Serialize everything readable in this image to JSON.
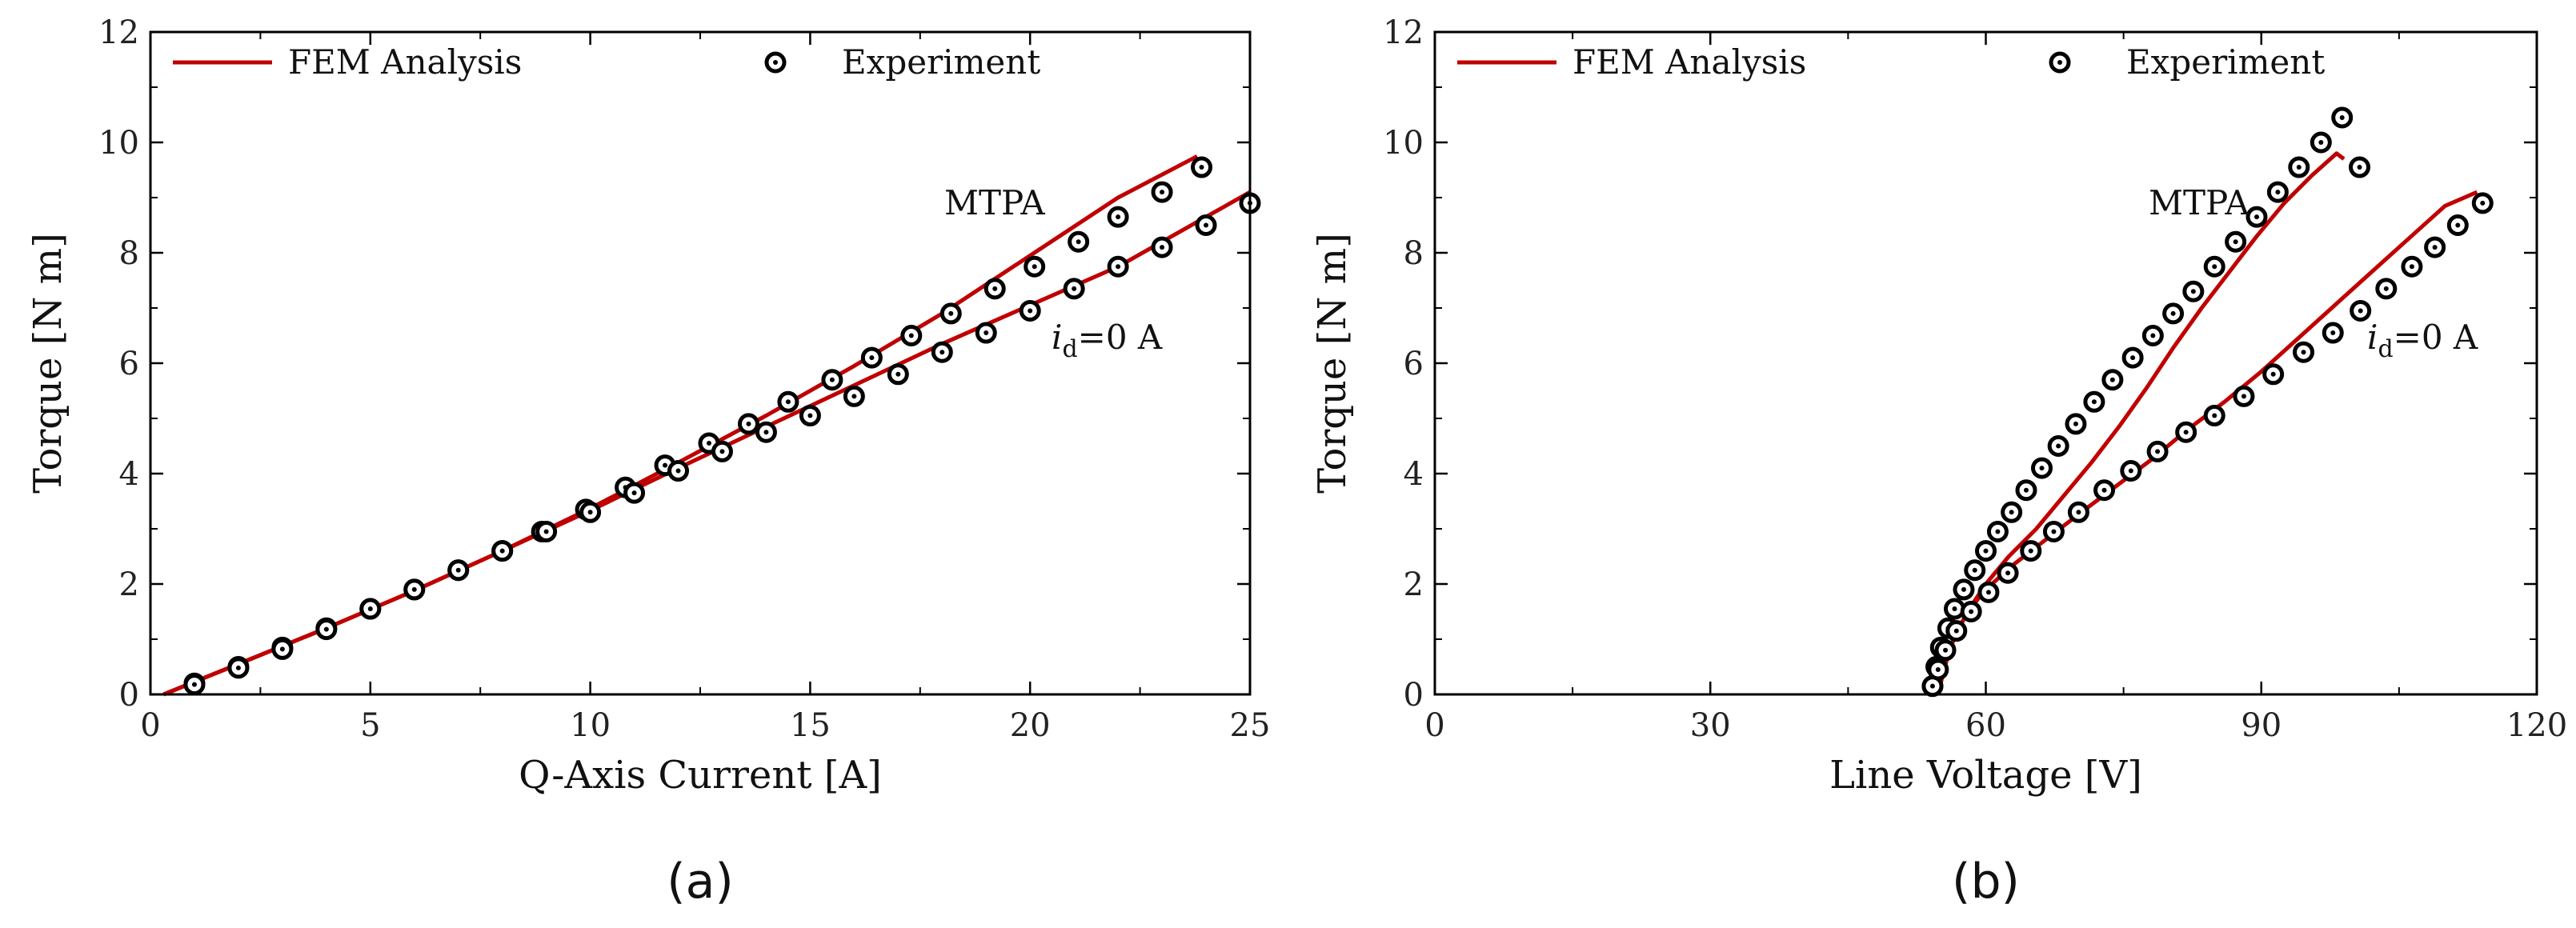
{
  "chart_data": [
    {
      "type": "line",
      "panel_label": "(a)",
      "panel_letter": "a",
      "xlabel": "Q-Axis Current [A]",
      "ylabel": "Torque [N m]",
      "xlim": [
        0,
        25
      ],
      "ylim": [
        0,
        12
      ],
      "xticks": [
        0,
        5,
        10,
        15,
        20,
        25
      ],
      "xtick_labels": [
        "0",
        "5",
        "10",
        "15",
        "20",
        "25"
      ],
      "yticks": [
        0,
        2,
        4,
        6,
        8,
        10,
        12
      ],
      "ytick_labels": [
        "0",
        "2",
        "4",
        "6",
        "8",
        "10",
        "12"
      ],
      "legend": {
        "placement": "top",
        "fem_label": "FEM Analysis",
        "exp_label": "Experiment"
      },
      "annotations": {
        "mtpa": "MTPA",
        "id_main": "i",
        "id_sub": "d",
        "id_rest": "=0 A"
      },
      "series": [
        {
          "name": "FEM Analysis — MTPA",
          "style": "line",
          "color": "#c00000",
          "x": [
            0.3,
            2,
            4,
            6,
            8,
            10,
            12,
            14,
            16,
            18,
            20,
            22,
            23.8
          ],
          "y": [
            0.0,
            0.55,
            1.2,
            1.88,
            2.6,
            3.37,
            4.2,
            5.05,
            5.95,
            6.9,
            7.95,
            9.0,
            9.75
          ]
        },
        {
          "name": "FEM Analysis — id=0 A",
          "style": "line",
          "color": "#c00000",
          "x": [
            0.3,
            2,
            4,
            6,
            8,
            10,
            12,
            14,
            16,
            18,
            20,
            22,
            25
          ],
          "y": [
            0.0,
            0.55,
            1.2,
            1.88,
            2.6,
            3.33,
            4.1,
            4.85,
            5.6,
            6.35,
            7.05,
            7.75,
            9.1
          ]
        },
        {
          "name": "Experiment — MTPA",
          "style": "marker",
          "x": [
            1,
            2,
            3,
            4,
            5,
            6,
            7,
            8,
            8.9,
            9.9,
            10.8,
            11.7,
            12.7,
            13.6,
            14.5,
            15.5,
            16.4,
            17.3,
            18.2,
            19.2,
            20.1,
            21.1,
            22,
            23,
            23.9
          ],
          "y": [
            0.2,
            0.5,
            0.85,
            1.2,
            1.55,
            1.9,
            2.25,
            2.6,
            2.95,
            3.35,
            3.75,
            4.15,
            4.55,
            4.9,
            5.3,
            5.7,
            6.1,
            6.5,
            6.9,
            7.35,
            7.75,
            8.2,
            8.65,
            9.1,
            9.55
          ]
        },
        {
          "name": "Experiment — id=0 A",
          "style": "marker",
          "x": [
            1,
            2,
            3,
            4,
            5,
            6,
            7,
            8,
            9,
            10,
            11,
            12,
            13,
            14,
            15,
            16,
            17,
            18,
            19,
            20,
            21,
            22,
            23,
            24,
            25
          ],
          "y": [
            0.18,
            0.48,
            0.82,
            1.18,
            1.55,
            1.9,
            2.25,
            2.6,
            2.95,
            3.3,
            3.65,
            4.05,
            4.4,
            4.75,
            5.05,
            5.4,
            5.8,
            6.2,
            6.55,
            6.95,
            7.35,
            7.75,
            8.1,
            8.5,
            8.9
          ]
        }
      ]
    },
    {
      "type": "line",
      "panel_label": "(b)",
      "panel_letter": "b",
      "xlabel": "Line Voltage [V]",
      "ylabel": "Torque [N m]",
      "xlim": [
        0,
        120
      ],
      "ylim": [
        0,
        12
      ],
      "xticks": [
        0,
        30,
        60,
        90,
        120
      ],
      "xtick_labels": [
        "0",
        "30",
        "60",
        "90",
        "120"
      ],
      "yticks": [
        0,
        2,
        4,
        6,
        8,
        10,
        12
      ],
      "ytick_labels": [
        "0",
        "2",
        "4",
        "6",
        "8",
        "10",
        "12"
      ],
      "legend": {
        "placement": "top",
        "fem_label": "FEM Analysis",
        "exp_label": "Experiment"
      },
      "annotations": {
        "mtpa": "MTPA",
        "id_main": "i",
        "id_sub": "d",
        "id_rest": "=0 A"
      },
      "series": [
        {
          "name": "FEM Analysis — MTPA",
          "style": "line",
          "color": "#c00000",
          "x": [
            54.8,
            55.5,
            56.5,
            58,
            60,
            62.5,
            65.5,
            68.5,
            71.5,
            74.5,
            77.5,
            80.5,
            83.5,
            86.5,
            89.5,
            92.5,
            95.5,
            98.2,
            99
          ],
          "y": [
            0.0,
            0.5,
            1.0,
            1.5,
            2.0,
            2.5,
            3.0,
            3.6,
            4.2,
            4.85,
            5.55,
            6.3,
            7.0,
            7.65,
            8.3,
            8.9,
            9.4,
            9.8,
            9.7
          ]
        },
        {
          "name": "FEM Analysis — id=0 A",
          "style": "line",
          "color": "#c00000",
          "x": [
            54.8,
            55.5,
            56.5,
            58,
            60,
            63,
            66.5,
            70,
            74,
            78,
            82,
            86,
            90,
            94,
            98,
            102,
            106,
            110,
            113.5
          ],
          "y": [
            0.0,
            0.5,
            1.0,
            1.5,
            1.9,
            2.35,
            2.8,
            3.25,
            3.75,
            4.25,
            4.8,
            5.3,
            5.85,
            6.45,
            7.05,
            7.65,
            8.25,
            8.85,
            9.1
          ]
        },
        {
          "name": "Experiment — MTPA",
          "style": "marker",
          "x": [
            54.2,
            54.6,
            55.1,
            55.9,
            56.6,
            57.6,
            58.8,
            60,
            61.3,
            62.8,
            64.4,
            66.1,
            67.9,
            69.8,
            71.8,
            73.8,
            76,
            78.2,
            80.4,
            82.6,
            84.9,
            87.2,
            89.5,
            91.8,
            94.1,
            96.5,
            98.8,
            100.7
          ],
          "y": [
            0.15,
            0.5,
            0.85,
            1.2,
            1.55,
            1.9,
            2.25,
            2.6,
            2.95,
            3.3,
            3.7,
            4.1,
            4.5,
            4.9,
            5.3,
            5.7,
            6.1,
            6.5,
            6.9,
            7.3,
            7.75,
            8.2,
            8.65,
            9.1,
            9.55,
            10.0,
            10.45,
            9.55
          ]
        },
        {
          "name": "Experiment — id=0 A",
          "style": "marker",
          "x": [
            54.2,
            54.8,
            55.6,
            56.8,
            58.4,
            60.3,
            62.4,
            64.9,
            67.4,
            70.1,
            72.9,
            75.8,
            78.7,
            81.8,
            84.9,
            88.1,
            91.3,
            94.6,
            97.8,
            100.8,
            103.6,
            106.4,
            108.9,
            111.4,
            114.1
          ],
          "y": [
            0.15,
            0.45,
            0.8,
            1.15,
            1.5,
            1.85,
            2.2,
            2.6,
            2.95,
            3.3,
            3.7,
            4.05,
            4.4,
            4.75,
            5.05,
            5.4,
            5.8,
            6.2,
            6.55,
            6.95,
            7.35,
            7.75,
            8.1,
            8.5,
            8.9
          ]
        }
      ]
    }
  ]
}
